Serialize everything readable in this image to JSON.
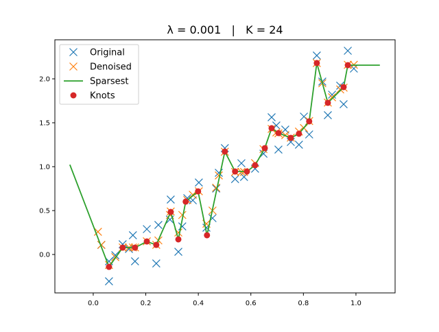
{
  "chart_data": {
    "type": "scatter",
    "title": "λ = 0.001   |   K = 24",
    "xlabel": "",
    "ylabel": "",
    "xlim": [
      -0.146,
      1.149
    ],
    "ylim": [
      -0.4375,
      2.445
    ],
    "xticks": [
      0.0,
      0.2,
      0.4,
      0.6,
      0.8,
      1.0
    ],
    "xtick_labels": [
      "0.0",
      "0.2",
      "0.4",
      "0.6",
      "0.8",
      "1.0"
    ],
    "yticks": [
      0.0,
      0.5,
      1.0,
      1.5,
      2.0
    ],
    "ytick_labels": [
      "0.0",
      "0.5",
      "1.0",
      "1.5",
      "2.0"
    ],
    "grid": false,
    "legend_placement": "top-left",
    "series": [
      {
        "name": "Original",
        "marker": "x",
        "color": "#1f77b4",
        "points": [
          [
            0.031,
            0.109
          ],
          [
            0.06,
            -0.078
          ],
          [
            0.06,
            -0.305
          ],
          [
            0.084,
            -0.008
          ],
          [
            0.112,
            0.117
          ],
          [
            0.136,
            0.063
          ],
          [
            0.151,
            0.219
          ],
          [
            0.159,
            -0.078
          ],
          [
            0.204,
            0.289
          ],
          [
            0.24,
            -0.102
          ],
          [
            0.248,
            0.336
          ],
          [
            0.292,
            0.398
          ],
          [
            0.295,
            0.625
          ],
          [
            0.324,
            0.031
          ],
          [
            0.339,
            0.32
          ],
          [
            0.358,
            0.641
          ],
          [
            0.379,
            0.617
          ],
          [
            0.402,
            0.82
          ],
          [
            0.431,
            0.305
          ],
          [
            0.454,
            0.414
          ],
          [
            0.468,
            0.75
          ],
          [
            0.478,
            0.93
          ],
          [
            0.501,
            1.211
          ],
          [
            0.54,
            0.859
          ],
          [
            0.564,
            1.039
          ],
          [
            0.574,
            0.883
          ],
          [
            0.616,
            0.977
          ],
          [
            0.648,
            1.148
          ],
          [
            0.679,
            1.563
          ],
          [
            0.697,
            1.469
          ],
          [
            0.705,
            1.195
          ],
          [
            0.731,
            1.422
          ],
          [
            0.752,
            1.281
          ],
          [
            0.783,
            1.25
          ],
          [
            0.802,
            1.57
          ],
          [
            0.822,
            1.367
          ],
          [
            0.851,
            2.266
          ],
          [
            0.872,
            1.969
          ],
          [
            0.893,
            1.586
          ],
          [
            0.909,
            1.82
          ],
          [
            0.94,
            1.922
          ],
          [
            0.953,
            1.711
          ],
          [
            0.969,
            2.32
          ],
          [
            0.992,
            2.117
          ]
        ]
      },
      {
        "name": "Denoised",
        "marker": "x",
        "color": "#ff7f0e",
        "points": [
          [
            0.018,
            0.258
          ],
          [
            0.031,
            0.11
          ],
          [
            0.06,
            -0.12
          ],
          [
            0.084,
            -0.03
          ],
          [
            0.112,
            0.08
          ],
          [
            0.136,
            0.08
          ],
          [
            0.151,
            0.08
          ],
          [
            0.159,
            0.08
          ],
          [
            0.204,
            0.15
          ],
          [
            0.24,
            0.11
          ],
          [
            0.248,
            0.16
          ],
          [
            0.292,
            0.45
          ],
          [
            0.295,
            0.49
          ],
          [
            0.324,
            0.25
          ],
          [
            0.339,
            0.45
          ],
          [
            0.358,
            0.62
          ],
          [
            0.379,
            0.68
          ],
          [
            0.402,
            0.72
          ],
          [
            0.431,
            0.35
          ],
          [
            0.454,
            0.5
          ],
          [
            0.468,
            0.76
          ],
          [
            0.478,
            0.9
          ],
          [
            0.501,
            1.17
          ],
          [
            0.54,
            0.94
          ],
          [
            0.564,
            0.94
          ],
          [
            0.574,
            0.94
          ],
          [
            0.616,
            1.04
          ],
          [
            0.648,
            1.2
          ],
          [
            0.679,
            1.43
          ],
          [
            0.697,
            1.39
          ],
          [
            0.705,
            1.38
          ],
          [
            0.731,
            1.36
          ],
          [
            0.752,
            1.33
          ],
          [
            0.783,
            1.4
          ],
          [
            0.802,
            1.44
          ],
          [
            0.822,
            1.52
          ],
          [
            0.851,
            2.18
          ],
          [
            0.872,
            1.95
          ],
          [
            0.893,
            1.73
          ],
          [
            0.909,
            1.79
          ],
          [
            0.94,
            1.88
          ],
          [
            0.953,
            1.9
          ],
          [
            0.969,
            2.16
          ],
          [
            0.992,
            2.16
          ]
        ]
      },
      {
        "name": "Sparsest",
        "marker": "line",
        "color": "#2ca02c",
        "points": [
          [
            -0.089,
            1.023
          ],
          [
            0.06,
            -0.141
          ],
          [
            0.112,
            0.078
          ],
          [
            0.159,
            0.078
          ],
          [
            0.204,
            0.148
          ],
          [
            0.24,
            0.109
          ],
          [
            0.295,
            0.484
          ],
          [
            0.324,
            0.172
          ],
          [
            0.352,
            0.602
          ],
          [
            0.399,
            0.719
          ],
          [
            0.433,
            0.219
          ],
          [
            0.501,
            1.172
          ],
          [
            0.54,
            0.945
          ],
          [
            0.585,
            0.945
          ],
          [
            0.616,
            1.016
          ],
          [
            0.653,
            1.211
          ],
          [
            0.679,
            1.438
          ],
          [
            0.705,
            1.383
          ],
          [
            0.752,
            1.328
          ],
          [
            0.783,
            1.375
          ],
          [
            0.822,
            1.516
          ],
          [
            0.851,
            2.18
          ],
          [
            0.893,
            1.727
          ],
          [
            0.953,
            1.906
          ],
          [
            0.969,
            2.156
          ],
          [
            1.091,
            2.156
          ]
        ]
      },
      {
        "name": "Knots",
        "marker": "o",
        "color": "#d62728",
        "points": [
          [
            0.06,
            -0.141
          ],
          [
            0.112,
            0.078
          ],
          [
            0.159,
            0.078
          ],
          [
            0.204,
            0.148
          ],
          [
            0.24,
            0.109
          ],
          [
            0.295,
            0.484
          ],
          [
            0.324,
            0.172
          ],
          [
            0.352,
            0.602
          ],
          [
            0.399,
            0.719
          ],
          [
            0.433,
            0.219
          ],
          [
            0.501,
            1.172
          ],
          [
            0.54,
            0.945
          ],
          [
            0.585,
            0.945
          ],
          [
            0.616,
            1.016
          ],
          [
            0.653,
            1.211
          ],
          [
            0.679,
            1.438
          ],
          [
            0.705,
            1.383
          ],
          [
            0.752,
            1.328
          ],
          [
            0.783,
            1.375
          ],
          [
            0.822,
            1.516
          ],
          [
            0.851,
            2.18
          ],
          [
            0.893,
            1.727
          ],
          [
            0.953,
            1.906
          ],
          [
            0.969,
            2.156
          ]
        ]
      }
    ]
  }
}
